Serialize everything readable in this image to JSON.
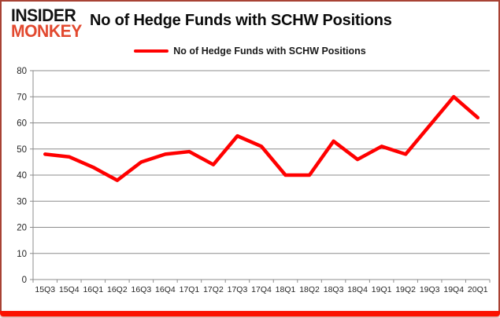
{
  "brand": {
    "line1": "INSIDER",
    "line2": "MONKEY"
  },
  "title": "No of Hedge Funds with SCHW Positions",
  "legend": {
    "label": "No of Hedge Funds with SCHW Positions"
  },
  "colors": {
    "line": "#ff0000",
    "grid": "#8c8c8c",
    "axis": "#8c8c8c",
    "tick_text": "#262626",
    "brand_accent": "#e2492f",
    "frame": "#a84234",
    "bottom_bar": "#fb1200"
  },
  "chart_data": {
    "type": "line",
    "title": "No of Hedge Funds with SCHW Positions",
    "categories": [
      "15Q3",
      "15Q4",
      "16Q1",
      "16Q2",
      "16Q3",
      "16Q4",
      "17Q1",
      "17Q2",
      "17Q3",
      "17Q4",
      "18Q1",
      "18Q2",
      "18Q3",
      "18Q4",
      "19Q1",
      "19Q2",
      "19Q3",
      "19Q4",
      "20Q1"
    ],
    "values": [
      48,
      47,
      43,
      38,
      45,
      48,
      49,
      44,
      55,
      51,
      40,
      40,
      53,
      46,
      51,
      48,
      59,
      70,
      62
    ],
    "xlabel": "",
    "ylabel": "",
    "ylim": [
      0,
      80
    ],
    "yticks": [
      0,
      10,
      20,
      30,
      40,
      50,
      60,
      70,
      80
    ],
    "grid": true,
    "legend_position": "top-center",
    "series_name": "No of Hedge Funds with SCHW Positions"
  }
}
